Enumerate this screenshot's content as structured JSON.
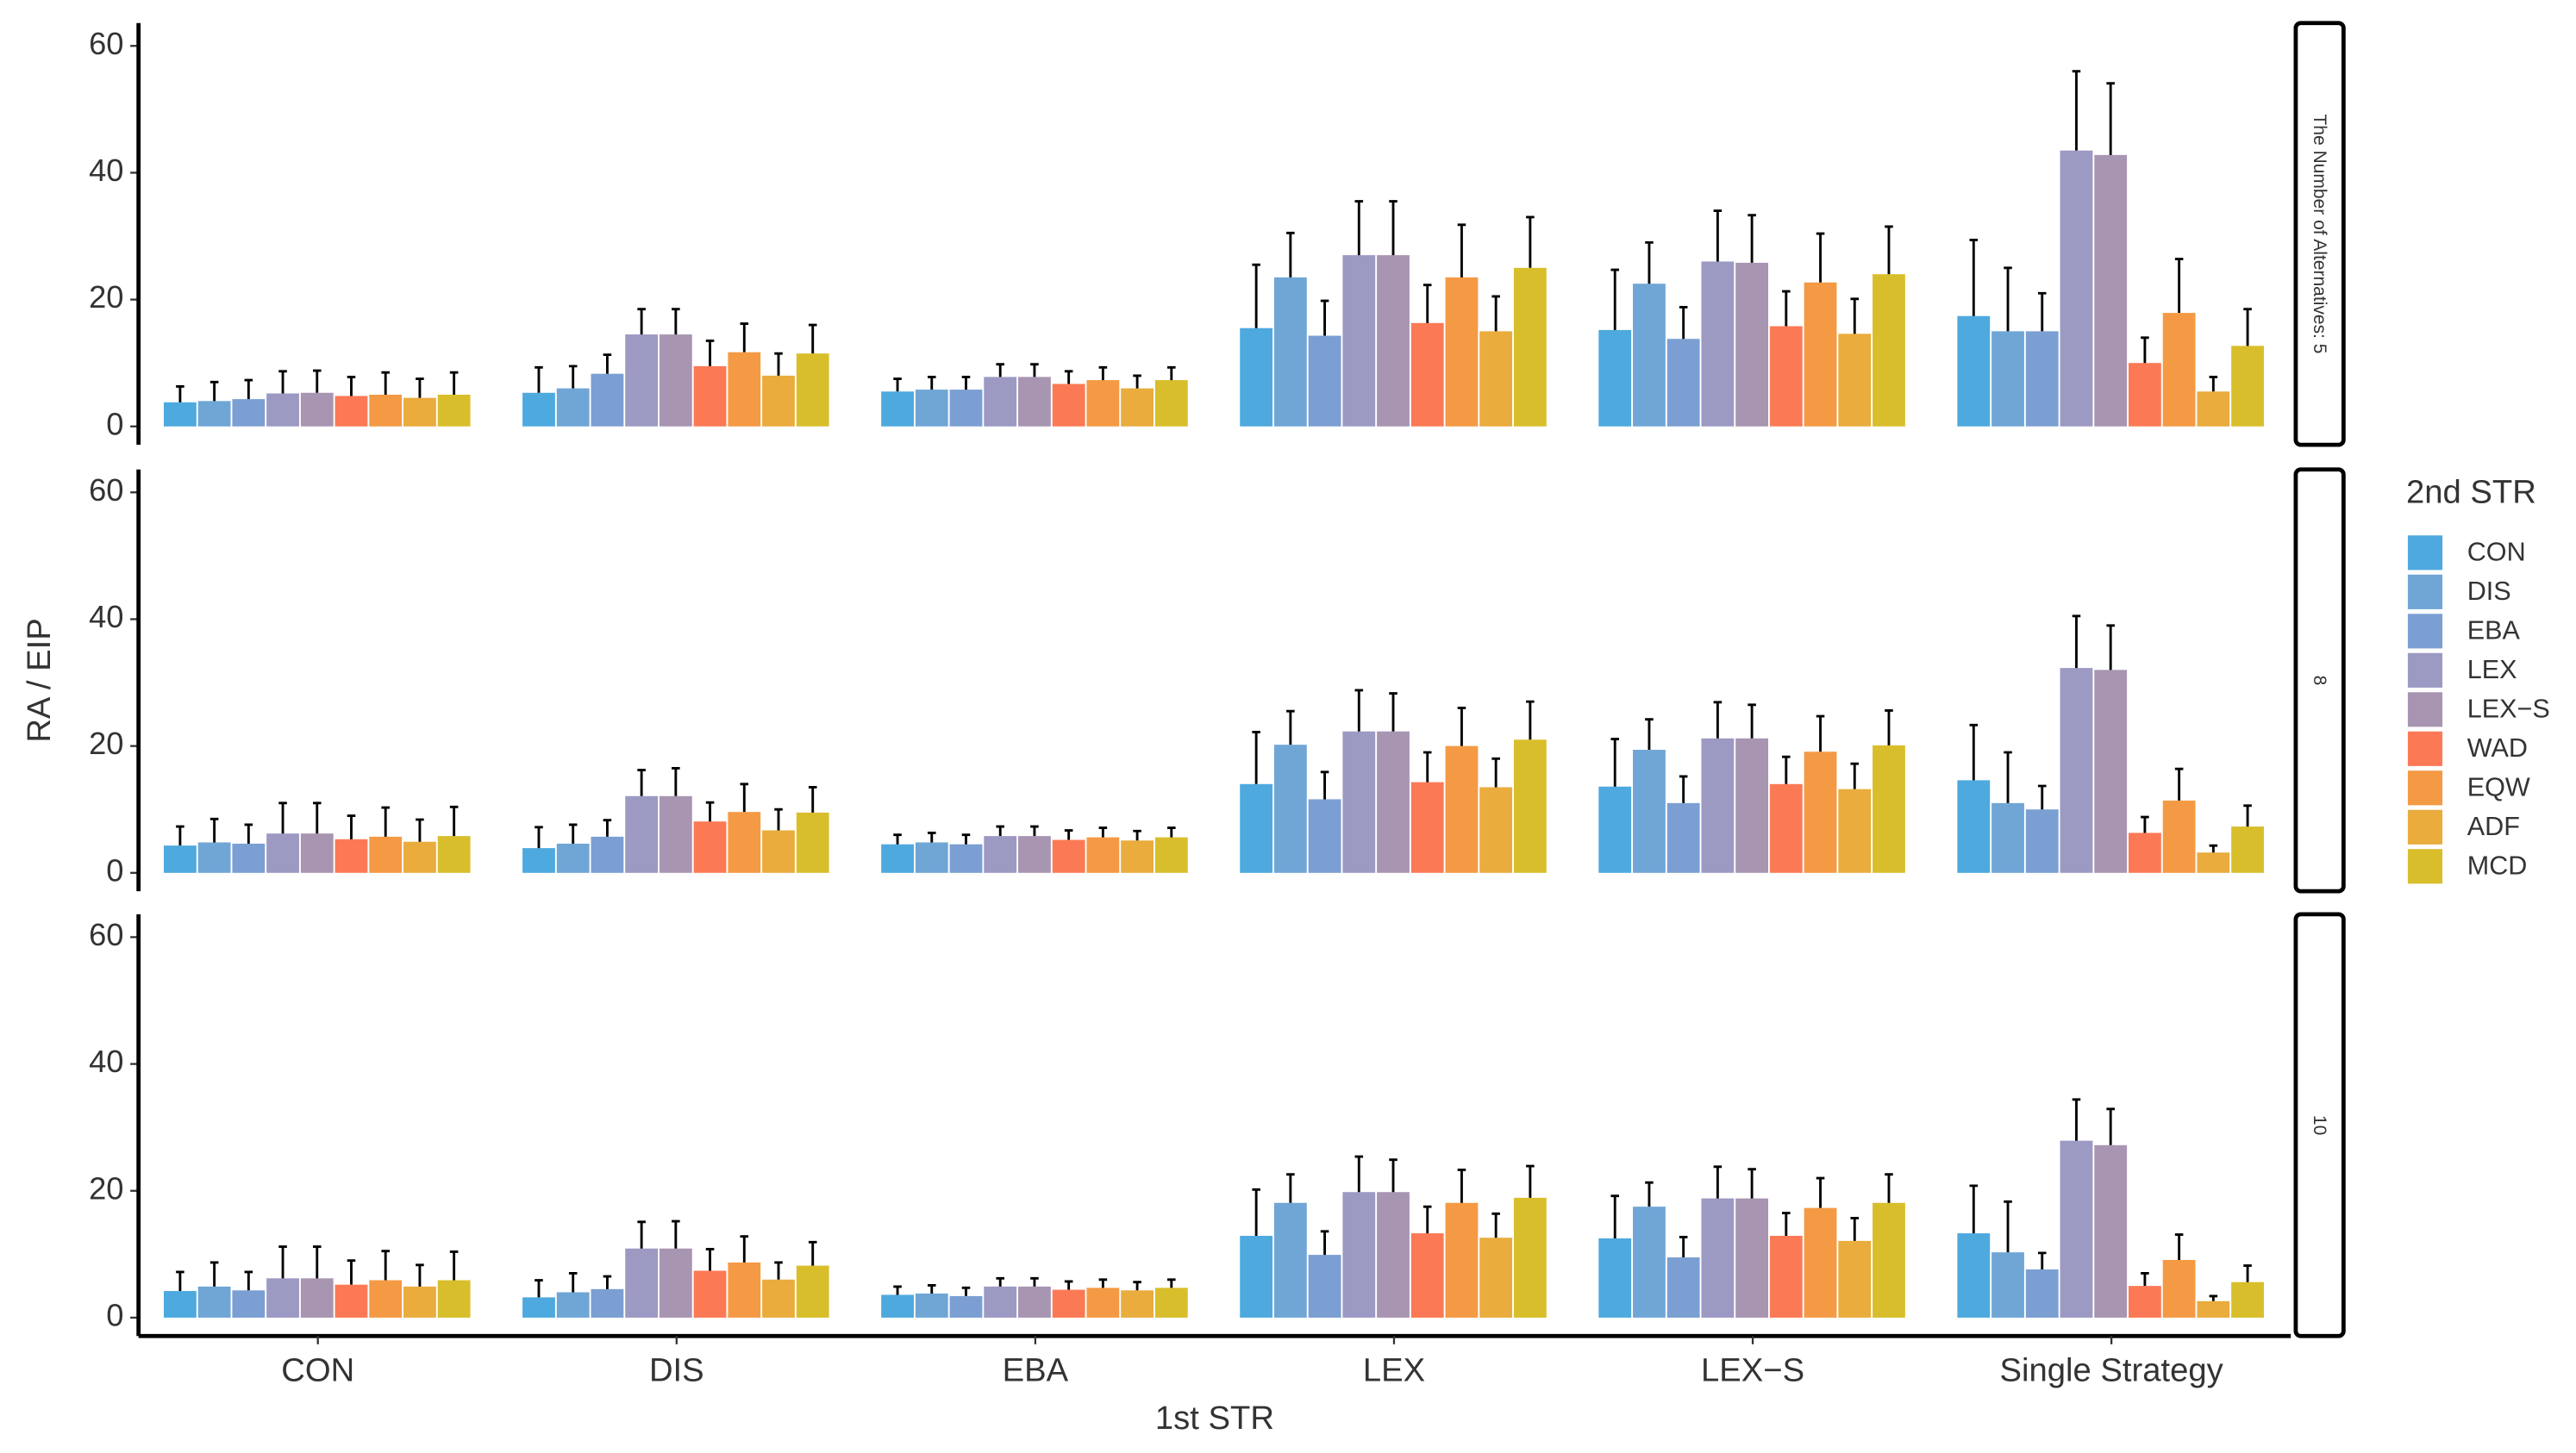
{
  "chart_data": {
    "type": "bar",
    "y_label": "RA / EIP",
    "x_label": "1st STR",
    "legend_title": "2nd STR",
    "categories": [
      "CON",
      "DIS",
      "EBA",
      "LEX",
      "LEX−S",
      "Single Strategy"
    ],
    "ylim": [
      -2.9,
      63.6
    ],
    "yticks": [
      0,
      20,
      40,
      60
    ],
    "grid": false,
    "series": [
      {
        "name": "CON",
        "color": "#4ea9de"
      },
      {
        "name": "DIS",
        "color": "#6fa6d6"
      },
      {
        "name": "EBA",
        "color": "#7b9fd3"
      },
      {
        "name": "LEX",
        "color": "#9c99c3"
      },
      {
        "name": "LEX−S",
        "color": "#a895b2"
      },
      {
        "name": "WAD",
        "color": "#fb7a55"
      },
      {
        "name": "EQW",
        "color": "#f49a45"
      },
      {
        "name": "ADF",
        "color": "#e9ac3d"
      },
      {
        "name": "MCD",
        "color": "#d9be2c"
      }
    ],
    "facets": [
      {
        "label": "The Number of Alternatives: 5",
        "series": [
          {
            "values": [
              3.8,
              5.3,
              5.5,
              15.5,
              15.2,
              17.4
            ],
            "errors": [
              2.5,
              4,
              2,
              10,
              9.5,
              12
            ]
          },
          {
            "values": [
              4.0,
              6.0,
              5.8,
              23.5,
              22.5,
              15
            ],
            "errors": [
              3,
              3.5,
              2,
              7,
              6.5,
              10
            ]
          },
          {
            "values": [
              4.3,
              8.3,
              5.8,
              14.3,
              13.8,
              15
            ],
            "errors": [
              3,
              3,
              2,
              5.5,
              5,
              6
            ]
          },
          {
            "values": [
              5.2,
              14.5,
              7.8,
              27,
              26,
              43.5
            ],
            "errors": [
              3.5,
              4,
              2,
              8.5,
              8,
              12.5
            ]
          },
          {
            "values": [
              5.3,
              14.5,
              7.8,
              27,
              25.8,
              42.8
            ],
            "errors": [
              3.5,
              4,
              2,
              8.5,
              7.5,
              11.3
            ]
          },
          {
            "values": [
              4.8,
              9.5,
              6.7,
              16.3,
              15.8,
              10
            ],
            "errors": [
              3,
              4,
              2,
              6,
              5.5,
              4
            ]
          },
          {
            "values": [
              5.0,
              11.7,
              7.3,
              23.5,
              22.7,
              17.9
            ],
            "errors": [
              3.5,
              4.5,
              2,
              8.3,
              7.7,
              8.5
            ]
          },
          {
            "values": [
              4.5,
              8.0,
              6.0,
              15,
              14.6,
              5.5
            ],
            "errors": [
              3,
              3.5,
              2,
              5.5,
              5.5,
              2.3
            ]
          },
          {
            "values": [
              5.0,
              11.5,
              7.3,
              25,
              24,
              12.7
            ],
            "errors": [
              3.5,
              4.5,
              2,
              8,
              7.5,
              5.8
            ]
          }
        ]
      },
      {
        "label": "8",
        "series": [
          {
            "values": [
              4.3,
              3.9,
              4.5,
              14,
              13.6,
              14.6
            ],
            "errors": [
              3,
              3.3,
              1.5,
              8.2,
              7.5,
              8.7
            ]
          },
          {
            "values": [
              4.8,
              4.6,
              4.8,
              20.2,
              19.4,
              11
            ],
            "errors": [
              3.7,
              3,
              1.5,
              5.3,
              4.8,
              8
            ]
          },
          {
            "values": [
              4.6,
              5.7,
              4.5,
              11.6,
              11,
              10
            ],
            "errors": [
              3,
              2.6,
              1.5,
              4.3,
              4.2,
              3.7
            ]
          },
          {
            "values": [
              6.2,
              12.1,
              5.8,
              22.3,
              21.2,
              32.3
            ],
            "errors": [
              4.8,
              4.1,
              1.5,
              6.5,
              5.7,
              8.2
            ]
          },
          {
            "values": [
              6.2,
              12.1,
              5.8,
              22.3,
              21.2,
              32
            ],
            "errors": [
              4.8,
              4.4,
              1.5,
              6,
              5.3,
              7
            ]
          },
          {
            "values": [
              5.3,
              8.1,
              5.2,
              14.3,
              14,
              6.3
            ],
            "errors": [
              3.7,
              3,
              1.5,
              4.7,
              4.3,
              2.5
            ]
          },
          {
            "values": [
              5.7,
              9.6,
              5.6,
              20,
              19.1,
              11.4
            ],
            "errors": [
              4.6,
              4.4,
              1.5,
              6,
              5.6,
              5
            ]
          },
          {
            "values": [
              4.9,
              6.7,
              5.1,
              13.5,
              13.2,
              3.2
            ],
            "errors": [
              3.5,
              3.3,
              1.5,
              4.5,
              4,
              1.1
            ]
          },
          {
            "values": [
              5.8,
              9.5,
              5.6,
              21,
              20.1,
              7.3
            ],
            "errors": [
              4.6,
              4,
              1.5,
              6,
              5.5,
              3.3
            ]
          }
        ]
      },
      {
        "label": "10",
        "series": [
          {
            "values": [
              4.2,
              3.2,
              3.6,
              12.9,
              12.5,
              13.3
            ],
            "errors": [
              3,
              2.7,
              1.3,
              7.3,
              6.7,
              7.5
            ]
          },
          {
            "values": [
              4.9,
              4.0,
              3.8,
              18.1,
              17.5,
              10.3
            ],
            "errors": [
              3.8,
              3,
              1.3,
              4.5,
              3.8,
              8
            ]
          },
          {
            "values": [
              4.3,
              4.5,
              3.4,
              9.9,
              9.5,
              7.6
            ],
            "errors": [
              2.9,
              2,
              1.3,
              3.7,
              3.2,
              2.6
            ]
          },
          {
            "values": [
              6.2,
              10.9,
              4.9,
              19.8,
              18.8,
              27.9
            ],
            "errors": [
              5,
              4.2,
              1.3,
              5.6,
              5,
              6.5
            ]
          },
          {
            "values": [
              6.2,
              10.9,
              4.9,
              19.8,
              18.8,
              27.2
            ],
            "errors": [
              5,
              4.3,
              1.3,
              5.1,
              4.6,
              5.7
            ]
          },
          {
            "values": [
              5.2,
              7.4,
              4.4,
              13.3,
              12.9,
              5
            ],
            "errors": [
              3.8,
              3.4,
              1.3,
              4.2,
              3.6,
              2
            ]
          },
          {
            "values": [
              5.9,
              8.7,
              4.7,
              18.1,
              17.3,
              9.1
            ],
            "errors": [
              4.6,
              4.1,
              1.3,
              5.2,
              4.7,
              4
            ]
          },
          {
            "values": [
              4.9,
              6.0,
              4.3,
              12.6,
              12.1,
              2.6
            ],
            "errors": [
              3.4,
              2.7,
              1.3,
              3.8,
              3.6,
              0.8
            ]
          },
          {
            "values": [
              5.9,
              8.2,
              4.7,
              18.9,
              18.1,
              5.6
            ],
            "errors": [
              4.5,
              3.7,
              1.3,
              5,
              4.5,
              2.6
            ]
          }
        ]
      }
    ]
  }
}
